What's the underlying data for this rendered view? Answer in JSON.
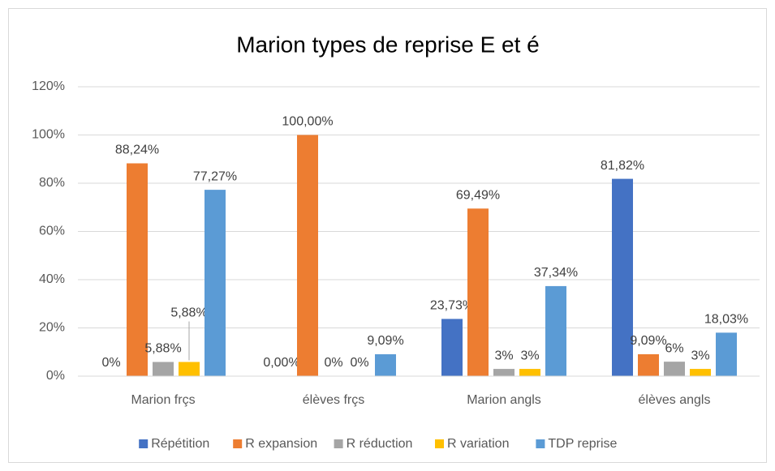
{
  "chart_data": {
    "type": "bar",
    "title": "Marion types de reprise E et é",
    "categories": [
      "Marion frçs",
      "élèves frçs",
      "Marion angls",
      "élèves angls"
    ],
    "series": [
      {
        "name": "Répétition",
        "color": "#4472c4",
        "values": [
          0,
          0,
          23.73,
          81.82
        ],
        "value_labels": [
          "0%",
          "0,00%",
          "23,73%",
          "81,82%"
        ]
      },
      {
        "name": "R expansion",
        "color": "#ed7d31",
        "values": [
          88.24,
          100,
          69.49,
          9.09
        ],
        "value_labels": [
          "88,24%",
          "100,00%",
          "69,49%",
          "9,09%"
        ]
      },
      {
        "name": "R réduction",
        "color": "#a5a5a5",
        "values": [
          5.88,
          0,
          3,
          6
        ],
        "value_labels": [
          "5,88%",
          "0%",
          "3%",
          "6%"
        ]
      },
      {
        "name": "R variation",
        "color": "#ffc000",
        "values": [
          5.88,
          0,
          3,
          3
        ],
        "value_labels": [
          "5,88%",
          "0%",
          "3%",
          "3%"
        ]
      },
      {
        "name": "TDP reprise",
        "color": "#5b9bd5",
        "values": [
          77.27,
          9.09,
          37.34,
          18.03
        ],
        "value_labels": [
          "77,27%",
          "9,09%",
          "37,34%",
          "18,03%"
        ]
      }
    ],
    "ylim": [
      0,
      120
    ],
    "yticks": [
      {
        "value": 0,
        "label": "0%"
      },
      {
        "value": 20,
        "label": "20%"
      },
      {
        "value": 40,
        "label": "40%"
      },
      {
        "value": 60,
        "label": "60%"
      },
      {
        "value": 80,
        "label": "80%"
      },
      {
        "value": 100,
        "label": "100%"
      },
      {
        "value": 120,
        "label": "120%"
      }
    ],
    "grid": true,
    "legend": "bottom"
  }
}
